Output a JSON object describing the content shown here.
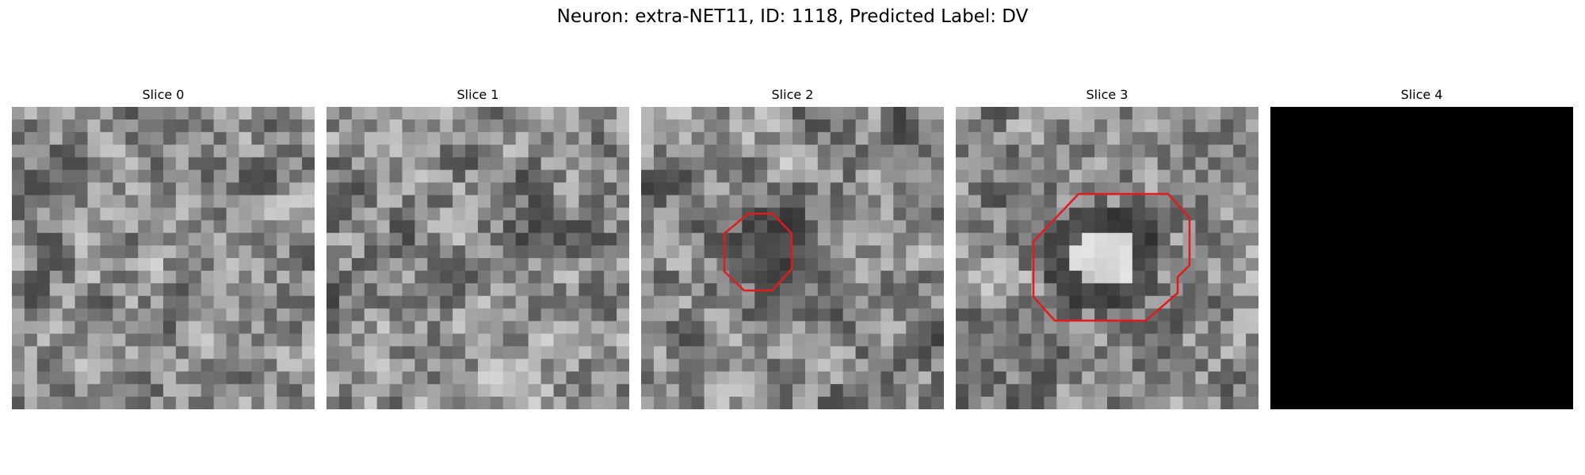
{
  "figure": {
    "title": "Neuron: extra-NET11, ID: 1118, Predicted Label: DV"
  },
  "panels": [
    {
      "title": "Slice 0",
      "has_contour": false,
      "blank": false
    },
    {
      "title": "Slice 1",
      "has_contour": false,
      "blank": false
    },
    {
      "title": "Slice 2",
      "has_contour": true,
      "blank": false
    },
    {
      "title": "Slice 3",
      "has_contour": true,
      "blank": false
    },
    {
      "title": "Slice 4",
      "has_contour": false,
      "blank": true
    }
  ],
  "colors": {
    "contour": "#e31a1c",
    "blank_slice": "#000000"
  }
}
